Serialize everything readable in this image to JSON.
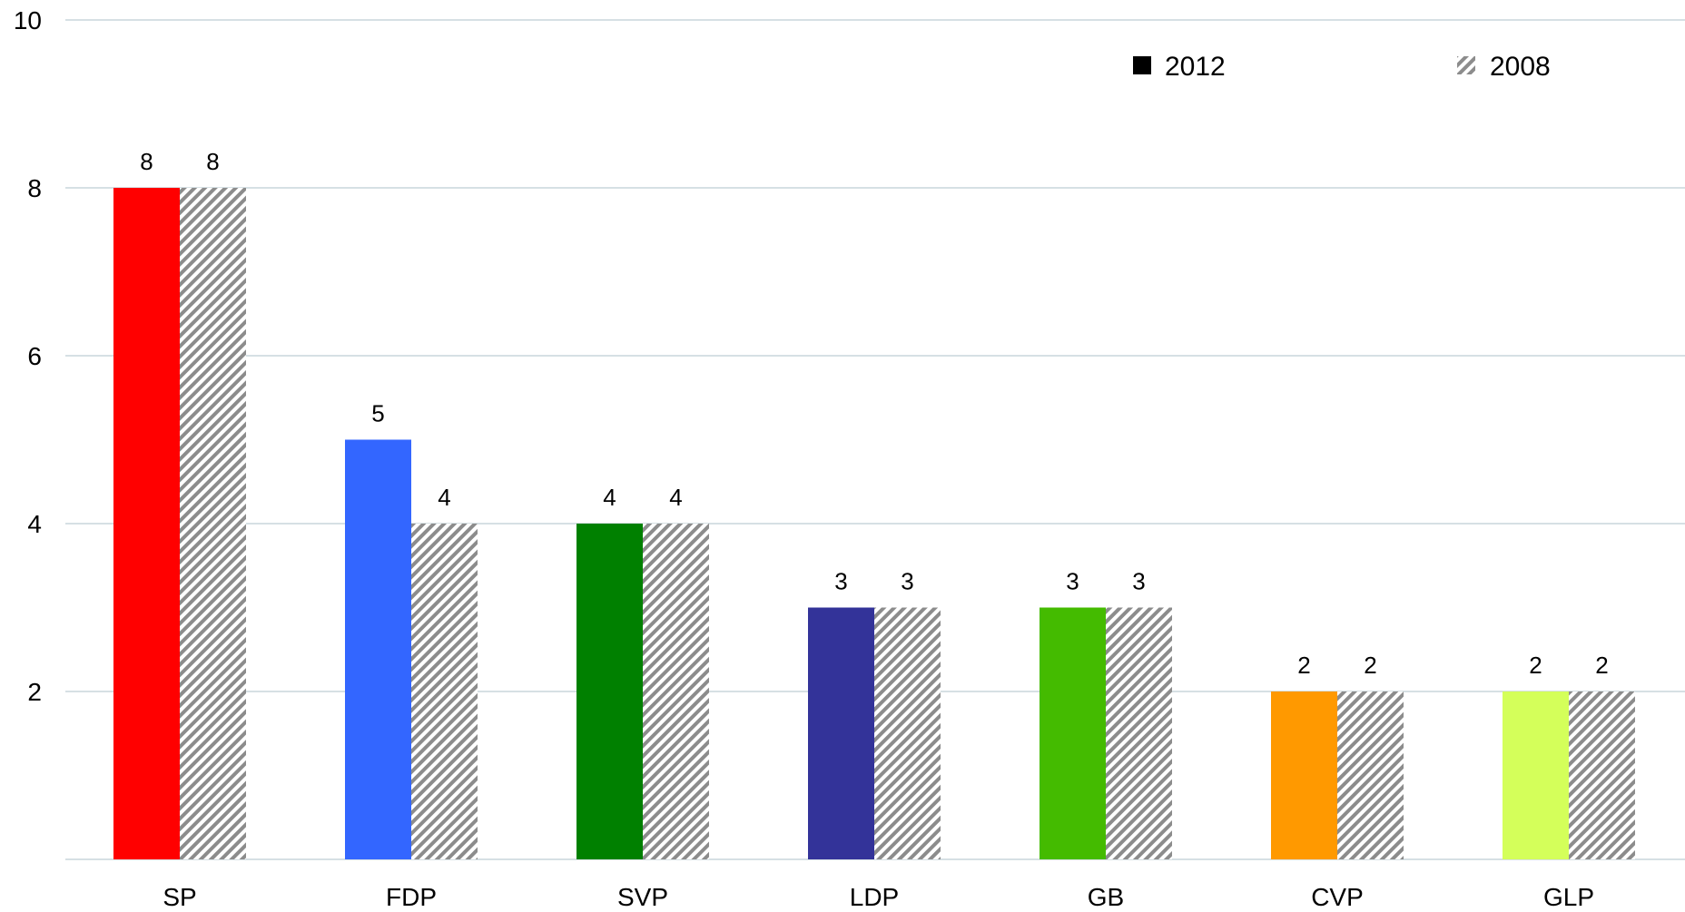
{
  "chart_data": {
    "type": "bar",
    "categories": [
      "SP",
      "FDP",
      "SVP",
      "LDP",
      "GB",
      "CVP",
      "GLP"
    ],
    "series": [
      {
        "name": "2012",
        "values": [
          8,
          5,
          4,
          3,
          3,
          2,
          2
        ],
        "colors": [
          "#ff0000",
          "#3366ff",
          "#008000",
          "#333399",
          "#44bb00",
          "#ff9900",
          "#d4ff5a"
        ]
      },
      {
        "name": "2008",
        "values": [
          8,
          4,
          4,
          3,
          3,
          2,
          2
        ],
        "pattern": "diagonal-hatch",
        "colors": [
          "#8c8c8c",
          "#ffffff"
        ]
      }
    ],
    "yaxis": {
      "ticks": [
        2,
        4,
        6,
        8,
        10
      ],
      "ylim": [
        0,
        10
      ]
    },
    "gridlines": true,
    "legend_position": "top-right",
    "legend_swatch_colors": [
      "#000000"
    ],
    "grid_color": "#c9d6dc",
    "title": "",
    "xlabel": "",
    "ylabel": ""
  }
}
